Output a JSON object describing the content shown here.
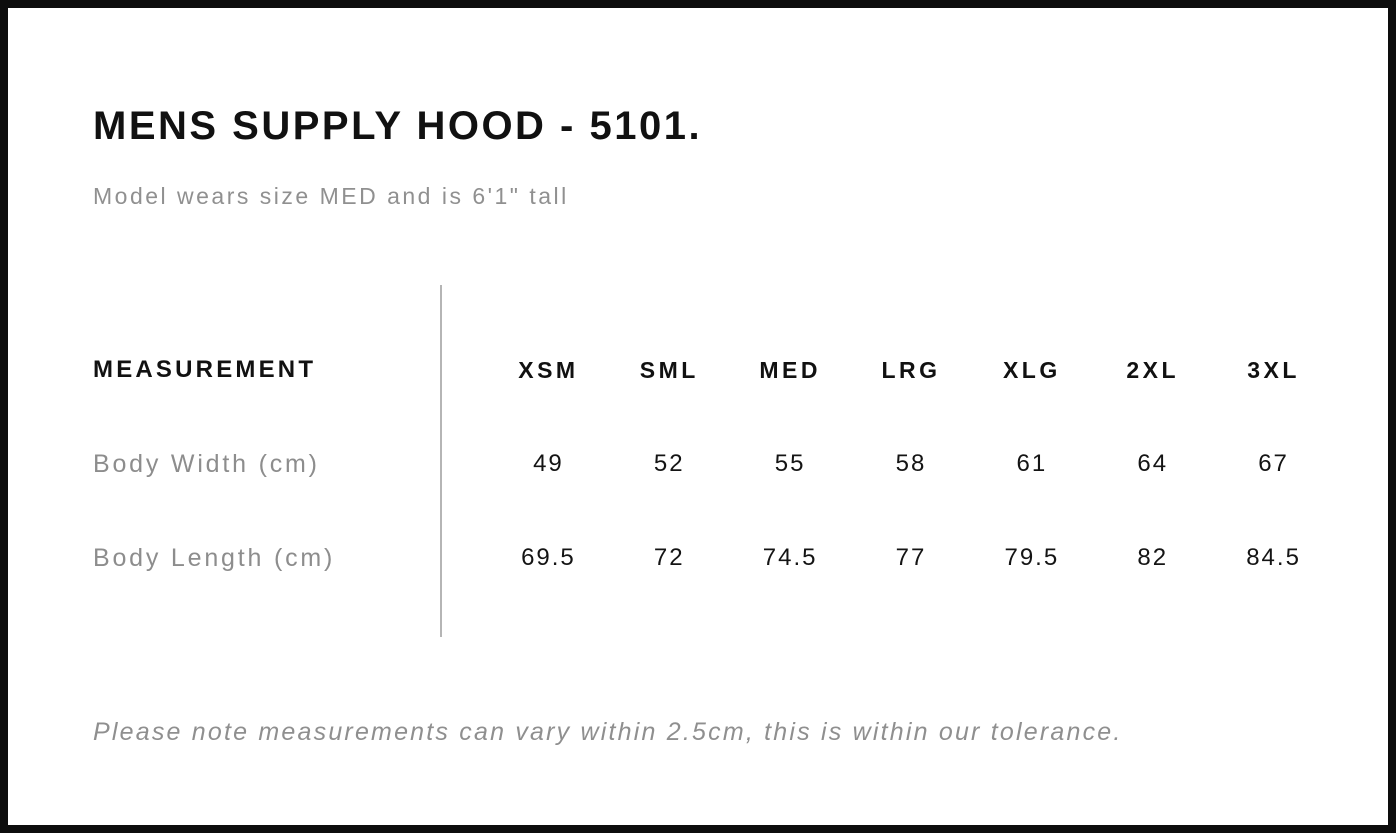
{
  "page": {
    "title": "MENS SUPPLY HOOD - 5101.",
    "subtitle": "Model wears size MED and is 6'1\" tall",
    "note": "Please note measurements can vary within 2.5cm, this is within our tolerance."
  },
  "size_chart": {
    "measurement_header": "MEASUREMENT",
    "sizes": [
      "XSM",
      "SML",
      "MED",
      "LRG",
      "XLG",
      "2XL",
      "3XL"
    ],
    "rows": [
      {
        "label": "Body Width (cm)",
        "values": [
          "49",
          "52",
          "55",
          "58",
          "61",
          "64",
          "67"
        ]
      },
      {
        "label": "Body Length (cm)",
        "values": [
          "69.5",
          "72",
          "74.5",
          "77",
          "79.5",
          "82",
          "84.5"
        ]
      }
    ]
  },
  "colors": {
    "frame_border": "#0d0d0d",
    "heading_text": "#111111",
    "muted_text": "#8f8f8f",
    "divider": "#b5b5b5",
    "background": "#ffffff"
  },
  "chart_data": {
    "type": "table",
    "title": "MENS SUPPLY HOOD - 5101.",
    "subtitle": "Model wears size MED and is 6'1\" tall",
    "columns": [
      "MEASUREMENT",
      "XSM",
      "SML",
      "MED",
      "LRG",
      "XLG",
      "2XL",
      "3XL"
    ],
    "rows": [
      [
        "Body Width (cm)",
        49,
        52,
        55,
        58,
        61,
        64,
        67
      ],
      [
        "Body Length (cm)",
        69.5,
        72,
        74.5,
        77,
        79.5,
        82,
        84.5
      ]
    ],
    "footnote": "Please note measurements can vary within 2.5cm, this is within our tolerance."
  }
}
